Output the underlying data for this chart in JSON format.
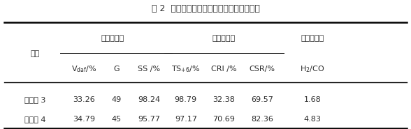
{
  "title": "表 2  添加不同量电石渣对气化焦性质的影响",
  "group1_text": "配合煤指标",
  "group2_text": "气化焦指标",
  "group3_text": "气化气组成",
  "seq_label": "序号",
  "col_header_plain": [
    "SS /%",
    "CRI /%",
    "CSR/%"
  ],
  "rows": [
    [
      "气化焦 3",
      "33.26",
      "49",
      "98.24",
      "98.79",
      "32.38",
      "69.57",
      "1.68"
    ],
    [
      "气化焦 4",
      "34.79",
      "45",
      "95.77",
      "97.17",
      "70.69",
      "82.36",
      "4.83"
    ]
  ],
  "background_color": "#ffffff",
  "line_color": "#000000",
  "text_color": "#2a2a2a",
  "font_size": 8.0,
  "title_font_size": 9.0
}
